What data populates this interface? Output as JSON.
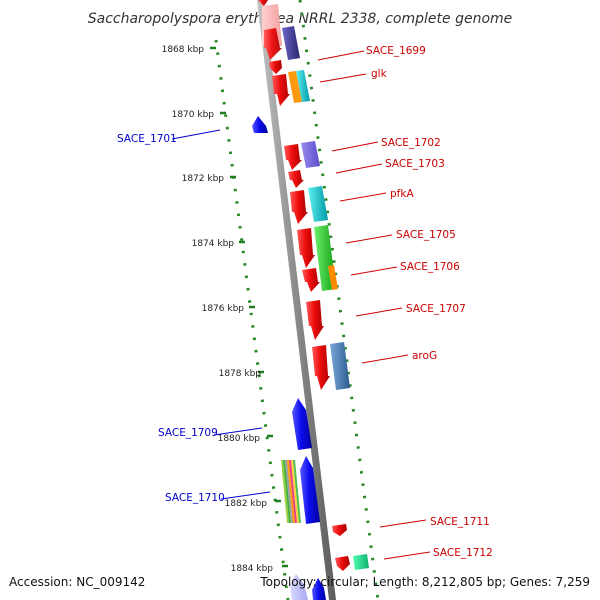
{
  "title": "Saccharopolyspora erythraea NRRL 2338, complete genome",
  "accession": "Accession: NC_009142",
  "summary": "Topology: circular; Length: 8,212,805 bp; Genes: 7,259",
  "colors": {
    "forward_gene": "#ee1111",
    "reverse_gene": "#1111ee",
    "forward_label": "#cc0000",
    "reverse_label": "#0000cc",
    "tick": "#228822",
    "backbone": "#888888"
  },
  "scale_labels": [
    "1868 kbp",
    "1870 kbp",
    "1872 kbp",
    "1874 kbp",
    "1876 kbp",
    "1878 kbp",
    "1880 kbp",
    "1882 kbp",
    "1884 kbp"
  ],
  "genes": [
    {
      "name": "SACE_1699",
      "strand": "forward"
    },
    {
      "name": "glk",
      "strand": "forward"
    },
    {
      "name": "SACE_1701",
      "strand": "reverse"
    },
    {
      "name": "SACE_1702",
      "strand": "forward"
    },
    {
      "name": "SACE_1703",
      "strand": "forward"
    },
    {
      "name": "pfkA",
      "strand": "forward"
    },
    {
      "name": "SACE_1705",
      "strand": "forward"
    },
    {
      "name": "SACE_1706",
      "strand": "forward"
    },
    {
      "name": "SACE_1707",
      "strand": "forward"
    },
    {
      "name": "aroG",
      "strand": "forward"
    },
    {
      "name": "SACE_1709",
      "strand": "reverse"
    },
    {
      "name": "SACE_1710",
      "strand": "reverse"
    },
    {
      "name": "SACE_1711",
      "strand": "forward"
    },
    {
      "name": "SACE_1712",
      "strand": "forward"
    }
  ]
}
